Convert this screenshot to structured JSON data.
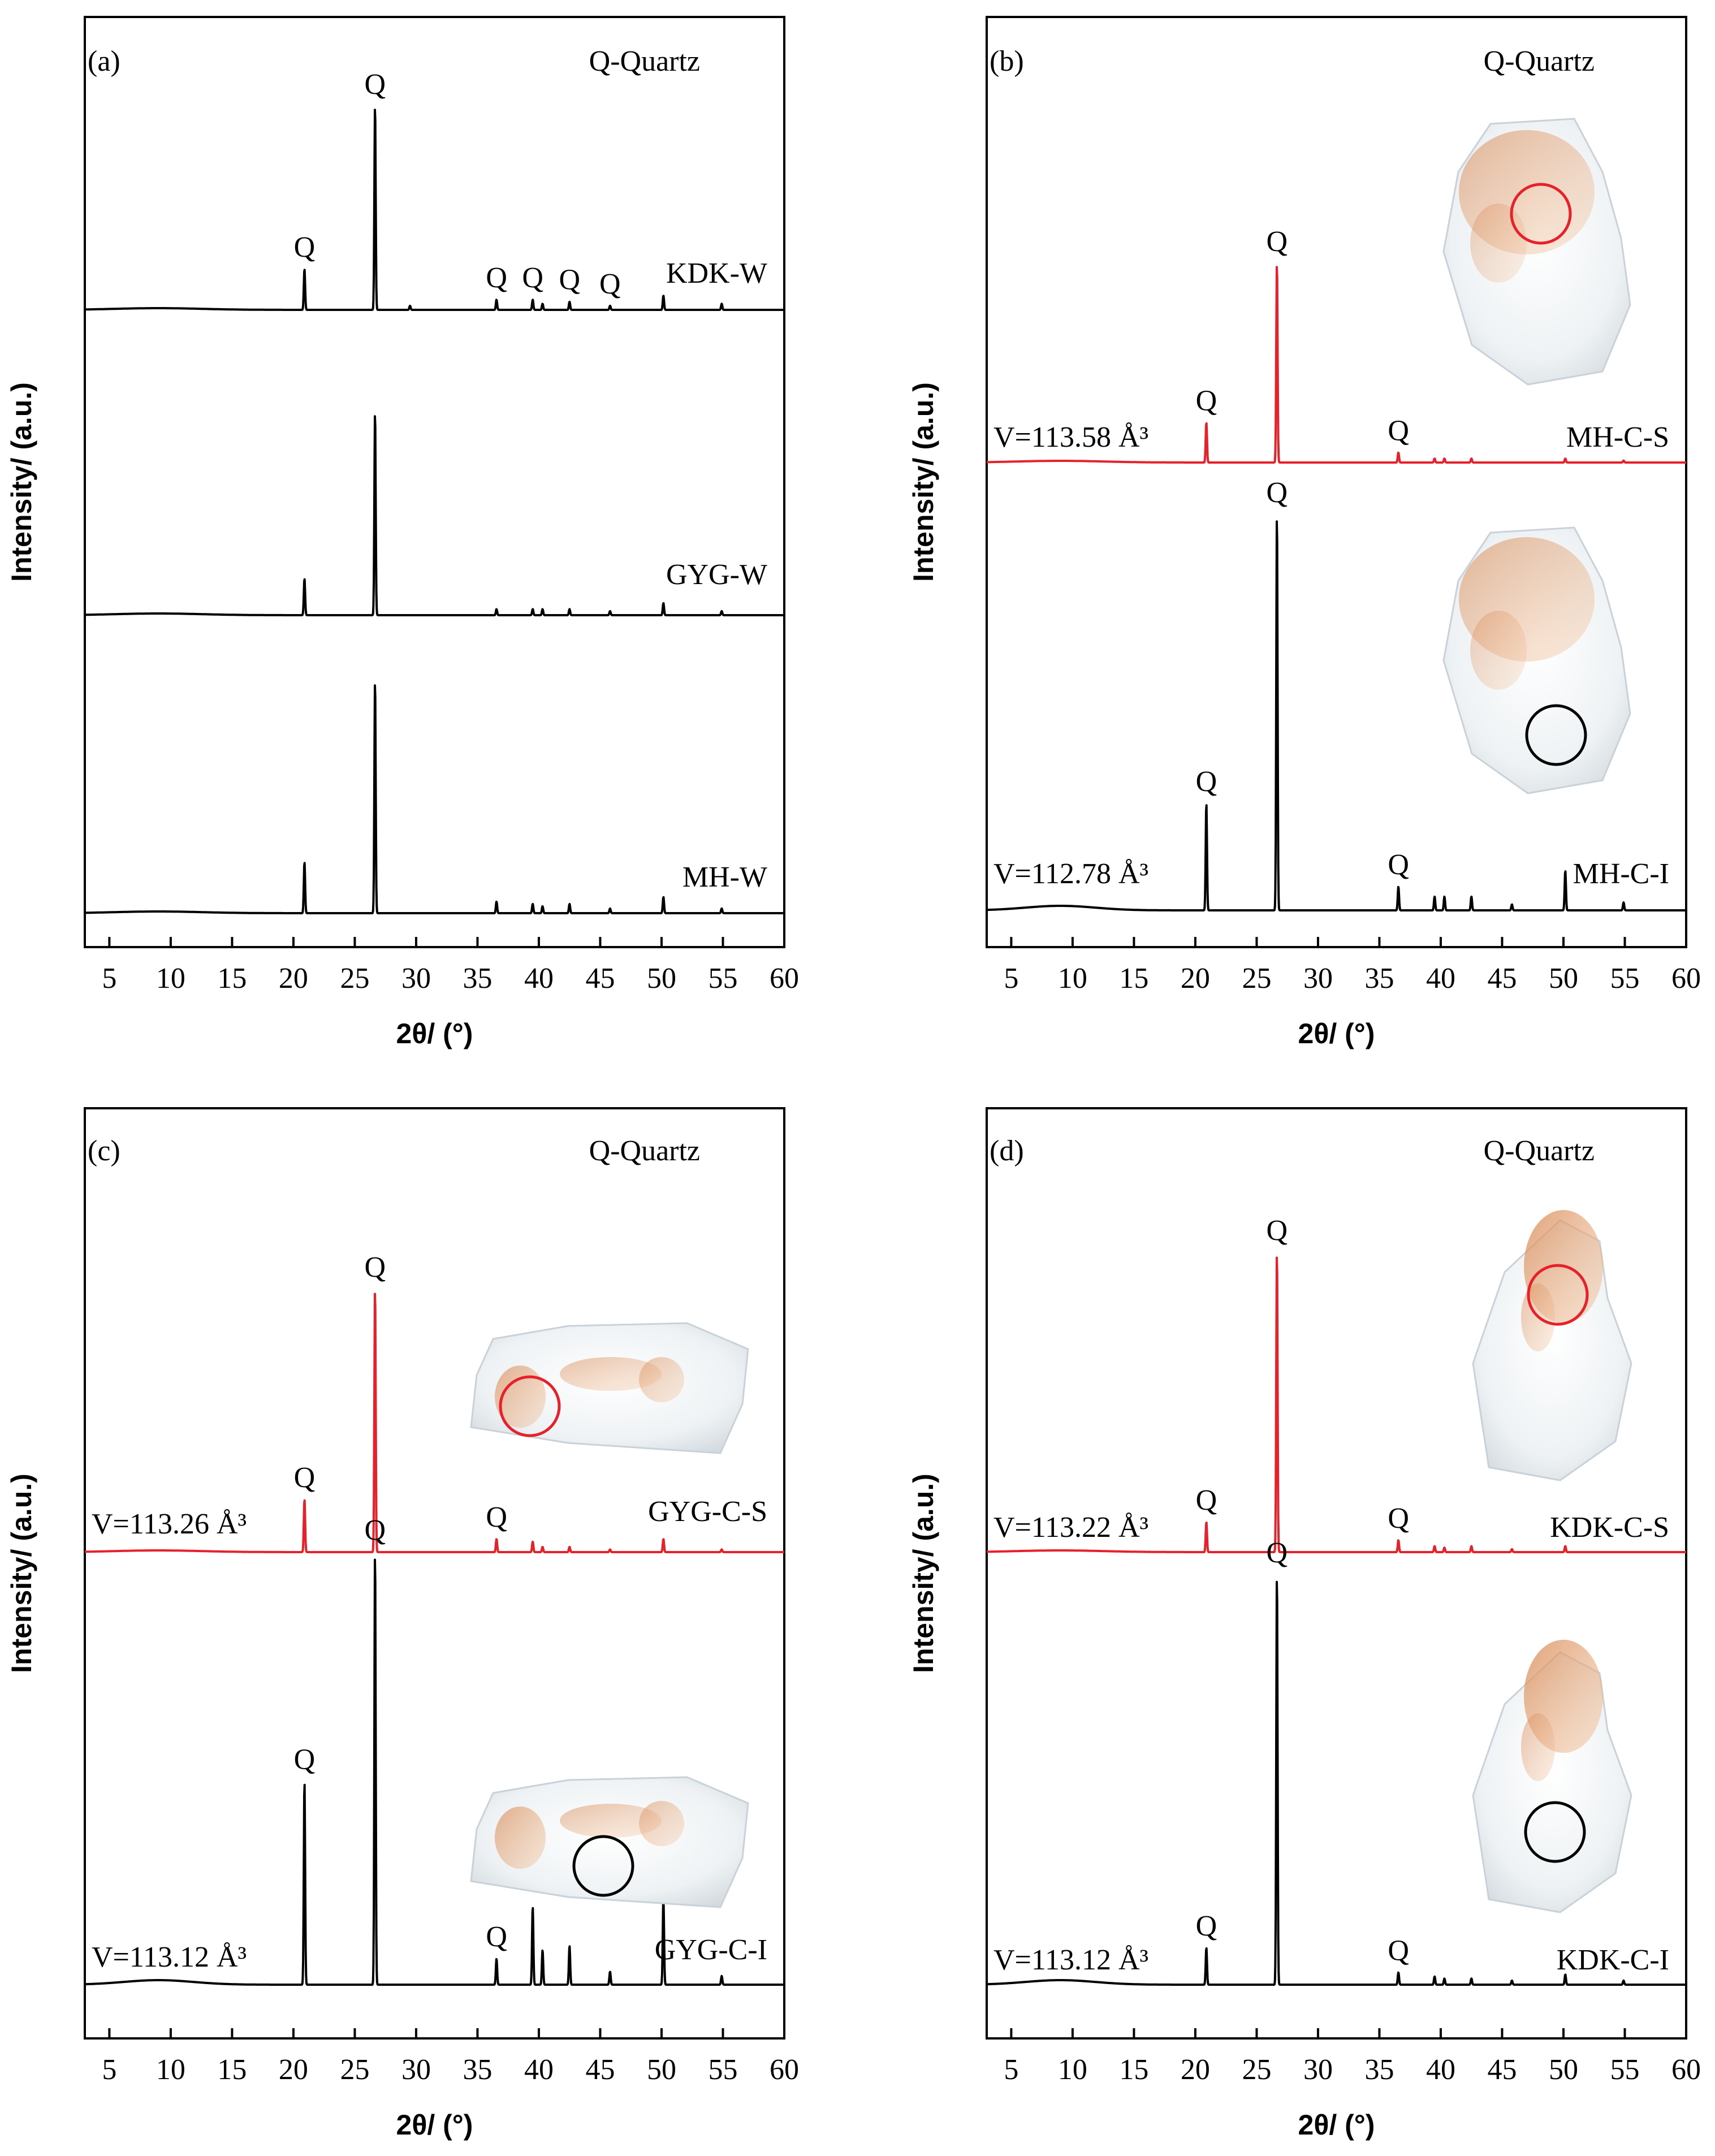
{
  "figure": {
    "x_axis_label": "2θ/ (°)",
    "y_axis_label": "Intensity/ (a.u.)"
  },
  "chart_data": [
    {
      "panel": "(a)",
      "type": "line",
      "legend": "Q-Quartz",
      "xlim": [
        3,
        60
      ],
      "xticks": [
        5,
        10,
        15,
        20,
        25,
        30,
        35,
        40,
        45,
        50,
        55,
        60
      ],
      "ylabel": "Intensity/ (a.u.)",
      "xlabel": "2θ/ (°)",
      "series": [
        {
          "name": "KDK-W",
          "color": "#000000",
          "peaks": [
            [
              20.9,
              0.2
            ],
            [
              26.65,
              1.0
            ],
            [
              29.5,
              0.02
            ],
            [
              36.55,
              0.05
            ],
            [
              39.5,
              0.05
            ],
            [
              40.3,
              0.03
            ],
            [
              42.5,
              0.04
            ],
            [
              45.8,
              0.02
            ],
            [
              50.15,
              0.07
            ],
            [
              54.9,
              0.03
            ]
          ]
        },
        {
          "name": "GYG-W",
          "color": "#000000",
          "peaks": [
            [
              20.9,
              0.18
            ],
            [
              26.65,
              1.0
            ],
            [
              36.55,
              0.03
            ],
            [
              39.5,
              0.03
            ],
            [
              40.3,
              0.03
            ],
            [
              42.5,
              0.03
            ],
            [
              45.8,
              0.02
            ],
            [
              50.15,
              0.06
            ],
            [
              54.9,
              0.02
            ]
          ]
        },
        {
          "name": "MH-W",
          "color": "#000000",
          "peaks": [
            [
              20.9,
              0.22
            ],
            [
              26.65,
              1.0
            ],
            [
              36.55,
              0.05
            ],
            [
              39.5,
              0.04
            ],
            [
              40.3,
              0.03
            ],
            [
              42.5,
              0.04
            ],
            [
              45.8,
              0.02
            ],
            [
              50.15,
              0.07
            ],
            [
              54.9,
              0.02
            ]
          ]
        }
      ],
      "annotations": [
        {
          "text": "Q",
          "x": 20.9,
          "series": "KDK-W"
        },
        {
          "text": "Q",
          "x": 26.65,
          "series": "KDK-W"
        },
        {
          "text": "Q",
          "x": 36.55,
          "series": "KDK-W"
        },
        {
          "text": "Q",
          "x": 39.5,
          "series": "KDK-W"
        },
        {
          "text": "Q",
          "x": 42.5,
          "series": "KDK-W"
        },
        {
          "text": "Q",
          "x": 45.8,
          "series": "KDK-W"
        }
      ]
    },
    {
      "panel": "(b)",
      "type": "line",
      "legend": "Q-Quartz",
      "xlim": [
        3,
        60
      ],
      "xticks": [
        5,
        10,
        15,
        20,
        25,
        30,
        35,
        40,
        45,
        50,
        55,
        60
      ],
      "ylabel": "Intensity/ (a.u.)",
      "xlabel": "2θ/ (°)",
      "series": [
        {
          "name": "MH-C-S",
          "color": "#e8202a",
          "volume": "V=113.58 Å³",
          "peaks": [
            [
              20.9,
              0.2
            ],
            [
              26.65,
              1.0
            ],
            [
              36.55,
              0.05
            ],
            [
              39.5,
              0.02
            ],
            [
              40.3,
              0.02
            ],
            [
              42.5,
              0.02
            ],
            [
              50.15,
              0.02
            ],
            [
              54.9,
              0.01
            ]
          ]
        },
        {
          "name": "MH-C-I",
          "color": "#000000",
          "volume": "V=112.78 Å³",
          "peaks": [
            [
              20.9,
              0.27
            ],
            [
              26.65,
              1.0
            ],
            [
              36.55,
              0.06
            ],
            [
              39.5,
              0.035
            ],
            [
              40.3,
              0.035
            ],
            [
              42.5,
              0.035
            ],
            [
              45.8,
              0.015
            ],
            [
              50.15,
              0.1
            ],
            [
              54.9,
              0.02
            ]
          ]
        }
      ],
      "annotations": [
        {
          "text": "Q",
          "x": 20.9,
          "series": "MH-C-S"
        },
        {
          "text": "Q",
          "x": 26.65,
          "series": "MH-C-S"
        },
        {
          "text": "Q",
          "x": 36.55,
          "series": "MH-C-S"
        },
        {
          "text": "Q",
          "x": 20.9,
          "series": "MH-C-I"
        },
        {
          "text": "Q",
          "x": 26.65,
          "series": "MH-C-I"
        },
        {
          "text": "Q",
          "x": 36.55,
          "series": "MH-C-I"
        }
      ]
    },
    {
      "panel": "(c)",
      "type": "line",
      "legend": "Q-Quartz",
      "xlim": [
        3,
        60
      ],
      "xticks": [
        5,
        10,
        15,
        20,
        25,
        30,
        35,
        40,
        45,
        50,
        55,
        60
      ],
      "ylabel": "Intensity/ (a.u.)",
      "xlabel": "2θ/ (°)",
      "series": [
        {
          "name": "GYG-C-S",
          "color": "#e8202a",
          "volume": "V=113.26 Å³",
          "peaks": [
            [
              20.9,
              0.2
            ],
            [
              26.65,
              1.0
            ],
            [
              36.55,
              0.05
            ],
            [
              39.5,
              0.04
            ],
            [
              40.3,
              0.02
            ],
            [
              42.5,
              0.02
            ],
            [
              45.8,
              0.01
            ],
            [
              50.15,
              0.05
            ],
            [
              54.9,
              0.01
            ]
          ]
        },
        {
          "name": "GYG-C-I",
          "color": "#000000",
          "volume": "V=113.12 Å³",
          "peaks": [
            [
              20.9,
              0.47
            ],
            [
              26.65,
              1.0
            ],
            [
              36.55,
              0.06
            ],
            [
              39.5,
              0.18
            ],
            [
              40.3,
              0.08
            ],
            [
              42.5,
              0.09
            ],
            [
              45.8,
              0.03
            ],
            [
              50.15,
              0.2
            ],
            [
              54.9,
              0.02
            ]
          ]
        }
      ],
      "annotations": [
        {
          "text": "Q",
          "x": 20.9,
          "series": "GYG-C-S"
        },
        {
          "text": "Q",
          "x": 26.65,
          "series": "GYG-C-S"
        },
        {
          "text": "Q",
          "x": 36.55,
          "series": "GYG-C-S"
        },
        {
          "text": "Q",
          "x": 20.9,
          "series": "GYG-C-I"
        },
        {
          "text": "Q",
          "x": 26.65,
          "series": "GYG-C-I"
        },
        {
          "text": "Q",
          "x": 36.55,
          "series": "GYG-C-I"
        }
      ]
    },
    {
      "panel": "(d)",
      "type": "line",
      "legend": "Q-Quartz",
      "xlim": [
        3,
        60
      ],
      "xticks": [
        5,
        10,
        15,
        20,
        25,
        30,
        35,
        40,
        45,
        50,
        55,
        60
      ],
      "ylabel": "Intensity/ (a.u.)",
      "xlabel": "2θ/ (°)",
      "series": [
        {
          "name": "KDK-C-S",
          "color": "#e8202a",
          "volume": "V=113.22 Å³",
          "peaks": [
            [
              20.9,
              0.1
            ],
            [
              26.65,
              1.0
            ],
            [
              36.55,
              0.04
            ],
            [
              39.5,
              0.02
            ],
            [
              40.3,
              0.015
            ],
            [
              42.5,
              0.02
            ],
            [
              45.8,
              0.01
            ],
            [
              50.15,
              0.02
            ]
          ]
        },
        {
          "name": "KDK-C-I",
          "color": "#000000",
          "volume": "V=113.12 Å³",
          "peaks": [
            [
              20.9,
              0.09
            ],
            [
              26.65,
              1.0
            ],
            [
              36.55,
              0.03
            ],
            [
              39.5,
              0.02
            ],
            [
              40.3,
              0.015
            ],
            [
              42.5,
              0.015
            ],
            [
              45.8,
              0.01
            ],
            [
              50.15,
              0.025
            ],
            [
              54.9,
              0.01
            ]
          ]
        }
      ],
      "annotations": [
        {
          "text": "Q",
          "x": 20.9,
          "series": "KDK-C-S"
        },
        {
          "text": "Q",
          "x": 26.65,
          "series": "KDK-C-S"
        },
        {
          "text": "Q",
          "x": 36.55,
          "series": "KDK-C-S"
        },
        {
          "text": "Q",
          "x": 20.9,
          "series": "KDK-C-I"
        },
        {
          "text": "Q",
          "x": 26.65,
          "series": "KDK-C-I"
        },
        {
          "text": "Q",
          "x": 36.55,
          "series": "KDK-C-I"
        }
      ]
    }
  ]
}
